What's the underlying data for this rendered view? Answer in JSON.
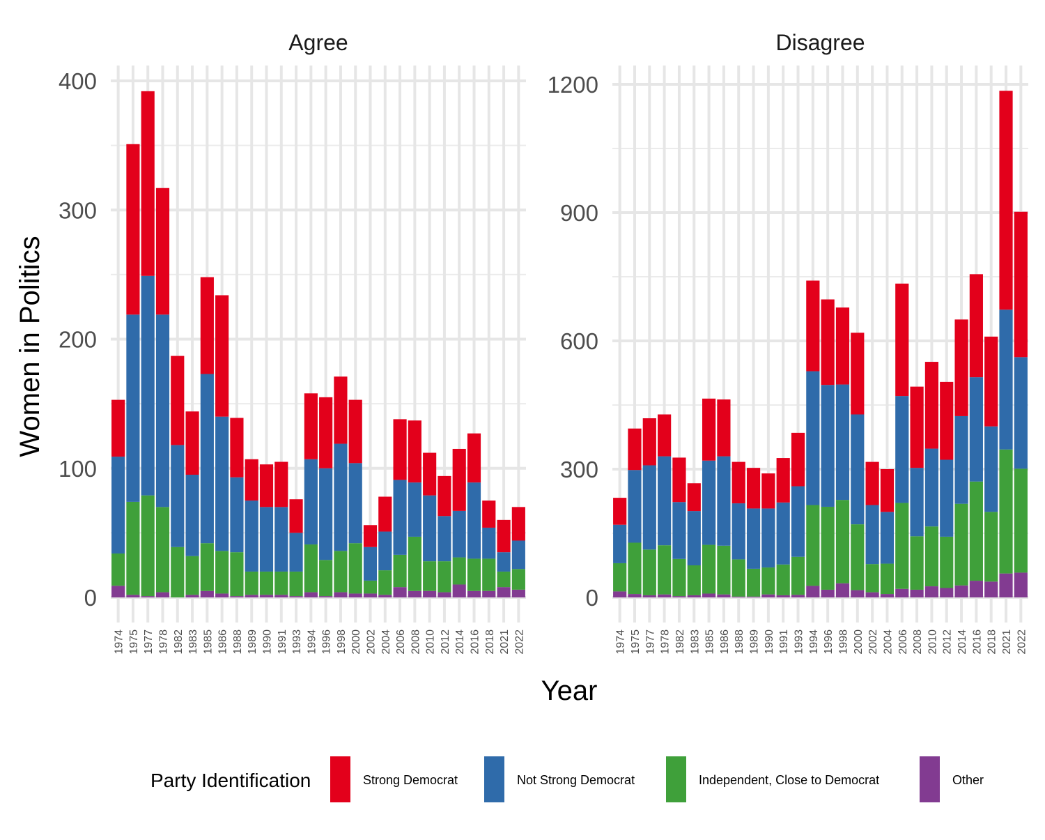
{
  "chart_data": {
    "type": "bar",
    "stacked": true,
    "faceted": true,
    "ylabel": "Women in Politics",
    "xlabel": "Year",
    "grid": true,
    "legend": {
      "title": "Party Identification",
      "placement": "bottom",
      "entries": [
        "Strong Democrat",
        "Not Strong Democrat",
        "Independent, Close to Democrat",
        "Other"
      ]
    },
    "colors": {
      "Strong Democrat": "#E3001B",
      "Not Strong Democrat": "#2F6BAA",
      "Independent, Close to Democrat": "#3FA03A",
      "Other": "#823B91"
    },
    "categories": [
      "1974",
      "1975",
      "1977",
      "1978",
      "1982",
      "1983",
      "1985",
      "1986",
      "1988",
      "1989",
      "1990",
      "1991",
      "1993",
      "1994",
      "1996",
      "1998",
      "2000",
      "2002",
      "2004",
      "2006",
      "2008",
      "2010",
      "2012",
      "2014",
      "2016",
      "2018",
      "2021",
      "2022"
    ],
    "panels": [
      {
        "title": "Agree",
        "ylim": [
          0,
          400
        ],
        "yticks": [
          0,
          100,
          200,
          300,
          400
        ],
        "series": [
          {
            "name": "Other",
            "values": [
              9,
              2,
              1,
              4,
              0,
              2,
              5,
              3,
              1,
              2,
              2,
              2,
              1,
              4,
              1,
              4,
              3,
              3,
              2,
              8,
              5,
              5,
              4,
              10,
              5,
              5,
              8,
              6
            ]
          },
          {
            "name": "Independent, Close to Democrat",
            "values": [
              25,
              72,
              78,
              66,
              39,
              30,
              37,
              33,
              34,
              18,
              18,
              18,
              19,
              37,
              28,
              32,
              39,
              10,
              19,
              25,
              42,
              23,
              24,
              21,
              25,
              25,
              12,
              16
            ]
          },
          {
            "name": "Not Strong Democrat",
            "values": [
              75,
              145,
              170,
              149,
              79,
              63,
              131,
              104,
              58,
              55,
              50,
              50,
              30,
              66,
              71,
              83,
              62,
              26,
              30,
              58,
              42,
              51,
              35,
              36,
              59,
              24,
              15,
              22
            ]
          },
          {
            "name": "Strong Democrat",
            "values": [
              44,
              132,
              143,
              98,
              69,
              49,
              75,
              94,
              46,
              32,
              33,
              35,
              26,
              51,
              55,
              52,
              49,
              17,
              27,
              47,
              48,
              33,
              31,
              48,
              38,
              21,
              25,
              26
            ]
          }
        ]
      },
      {
        "title": "Disagree",
        "ylim": [
          0,
          1200
        ],
        "yticks": [
          0,
          300,
          600,
          900,
          1200
        ],
        "series": [
          {
            "name": "Other",
            "values": [
              14,
              8,
              5,
              7,
              3,
              5,
              9,
              7,
              2,
              2,
              7,
              5,
              6,
              27,
              18,
              33,
              17,
              12,
              8,
              20,
              18,
              26,
              22,
              28,
              39,
              37,
              56,
              58
            ]
          },
          {
            "name": "Independent, Close to Democrat",
            "values": [
              66,
              120,
              107,
              115,
              87,
              70,
              114,
              114,
              87,
              65,
              63,
              72,
              89,
              189,
              194,
              195,
              154,
              66,
              71,
              201,
              125,
              140,
              120,
              191,
              232,
              163,
              290,
              243
            ]
          },
          {
            "name": "Not Strong Democrat",
            "values": [
              90,
              170,
              197,
              208,
              133,
              127,
              197,
              209,
              131,
              141,
              138,
              145,
              165,
              313,
              285,
              270,
              257,
              138,
              121,
              250,
              160,
              182,
              180,
              205,
              244,
              200,
              327,
              261
            ]
          },
          {
            "name": "Strong Democrat",
            "values": [
              63,
              97,
              110,
              98,
              104,
              65,
              145,
              133,
              97,
              95,
              82,
              104,
              125,
              212,
              200,
              180,
              191,
              101,
              100,
              263,
              190,
              203,
              182,
              226,
              241,
              210,
              512,
              340
            ]
          }
        ]
      }
    ]
  }
}
